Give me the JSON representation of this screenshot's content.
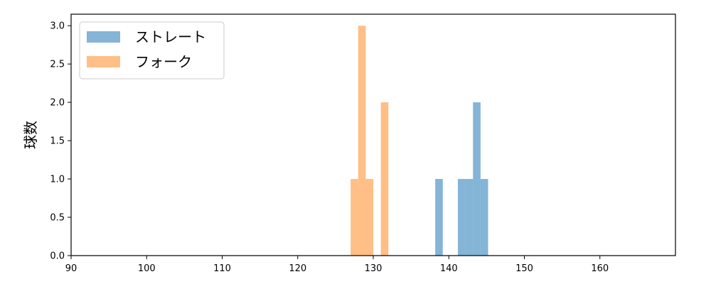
{
  "chart_data": {
    "type": "bar",
    "subtype": "histogram",
    "title": "",
    "xlabel": "",
    "ylabel": "球数",
    "xlim": [
      90,
      170
    ],
    "ylim": [
      0,
      3.15
    ],
    "xticks": [
      90,
      100,
      110,
      120,
      130,
      140,
      150,
      160
    ],
    "yticks": [
      0.0,
      0.5,
      1.0,
      1.5,
      2.0,
      2.5,
      3.0
    ],
    "ytick_labels": [
      "0.0",
      "0.5",
      "1.0",
      "1.5",
      "2.0",
      "2.5",
      "3.0"
    ],
    "grid": false,
    "legend_position": "top-left",
    "series": [
      {
        "name": "ストレート",
        "color": "#1f77b4",
        "alpha": 0.55,
        "bins": [
          {
            "x0": 138.2,
            "x1": 139.2,
            "count": 1
          },
          {
            "x0": 141.2,
            "x1": 142.2,
            "count": 1
          },
          {
            "x0": 142.2,
            "x1": 143.2,
            "count": 1
          },
          {
            "x0": 143.2,
            "x1": 144.2,
            "count": 2
          },
          {
            "x0": 144.2,
            "x1": 145.2,
            "count": 1
          }
        ]
      },
      {
        "name": "フォーク",
        "color": "#ff7f0e",
        "alpha": 0.5,
        "bins": [
          {
            "x0": 127.0,
            "x1": 128.0,
            "count": 1
          },
          {
            "x0": 128.0,
            "x1": 129.0,
            "count": 3
          },
          {
            "x0": 129.0,
            "x1": 130.0,
            "count": 1
          },
          {
            "x0": 131.0,
            "x1": 132.0,
            "count": 2
          }
        ]
      }
    ]
  }
}
